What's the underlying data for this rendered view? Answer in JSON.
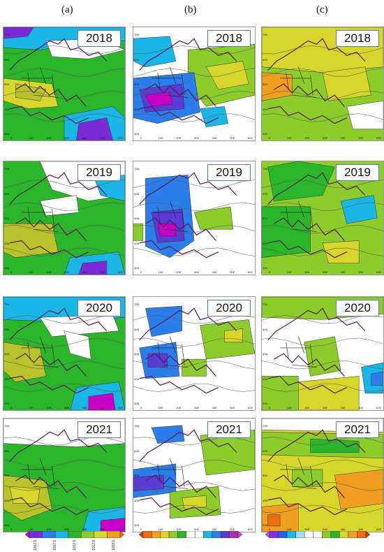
{
  "columns": [
    {
      "label": "(a)"
    },
    {
      "label": "(b)"
    },
    {
      "label": "(c)"
    }
  ],
  "years": [
    "2018",
    "2019",
    "2020",
    "2021"
  ],
  "lat_labels": [
    "70N",
    "60N",
    "50N",
    "40N",
    "30N"
  ],
  "lon_labels": [
    "0",
    "10E",
    "20E",
    "30E",
    "40E",
    "50E",
    "60E"
  ],
  "colorbars": {
    "a": {
      "labels": [
        "1002.5",
        "1007.5",
        "1012.5",
        "1017.5",
        "1022.5"
      ],
      "colors": [
        "#c800c8",
        "#7a2bd6",
        "#2b7de9",
        "#19b6e6",
        "#2bb52b",
        "#8ccc2b",
        "#d6d62b",
        "#f0a020",
        "#f06a10"
      ]
    },
    "b": {
      "colors": [
        "#e0301e",
        "#f06a10",
        "#f0a020",
        "#e0d020",
        "#8ccc2b",
        "#2bb52b",
        "#ffffff",
        "#ffffff",
        "#19b6e6",
        "#2b7de9",
        "#5a3bd6",
        "#b02bb0",
        "#d04ad0"
      ]
    },
    "c": {
      "colors": [
        "#d04ad0",
        "#8a2be2",
        "#2b5be9",
        "#19b6e6",
        "#a0e0f0",
        "#ffffff",
        "#ffffff",
        "#8ccc2b",
        "#2bb52b",
        "#d6d62b",
        "#f0a020",
        "#f06a10",
        "#e0301e"
      ]
    }
  }
}
